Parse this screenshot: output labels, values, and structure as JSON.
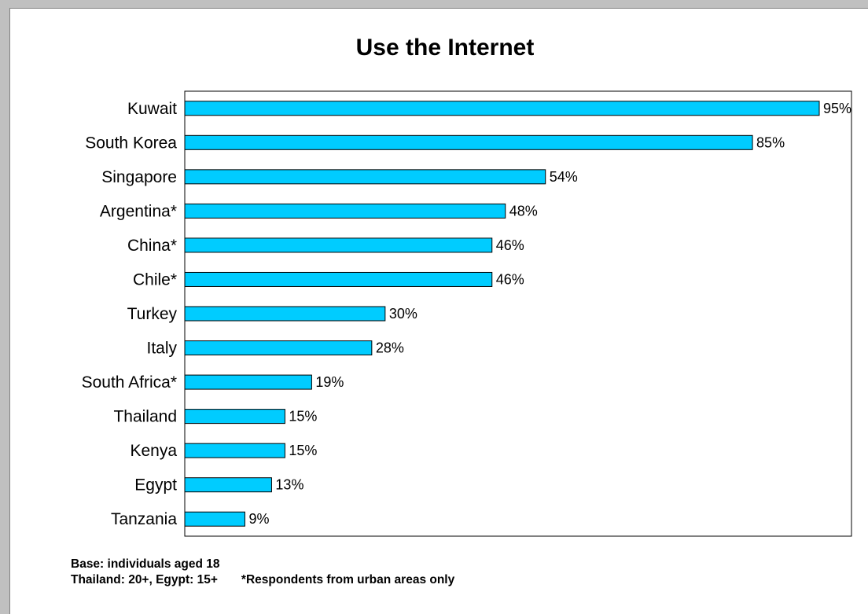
{
  "chart_data": {
    "type": "bar",
    "orientation": "horizontal",
    "title": "Use the Internet",
    "categories": [
      "Kuwait",
      "South Korea",
      "Singapore",
      "Argentina*",
      "China*",
      "Chile*",
      "Turkey",
      "Italy",
      "South Africa*",
      "Thailand",
      "Kenya",
      "Egypt",
      "Tanzania"
    ],
    "values": [
      95,
      85,
      54,
      48,
      46,
      46,
      30,
      28,
      19,
      15,
      15,
      13,
      9
    ],
    "value_labels": [
      "95%",
      "85%",
      "54%",
      "48%",
      "46%",
      "46%",
      "30%",
      "28%",
      "19%",
      "15%",
      "15%",
      "13%",
      "9%"
    ],
    "xlim": [
      0,
      100
    ],
    "grid": false,
    "legend": "none",
    "bar_color": "#00ccff",
    "bar_edge_color": "#000000"
  },
  "notes": {
    "base": "Base: individuals aged 18",
    "ages": "Thailand: 20+, Egypt: 15+",
    "urban": "*Respondents from urban areas only"
  }
}
